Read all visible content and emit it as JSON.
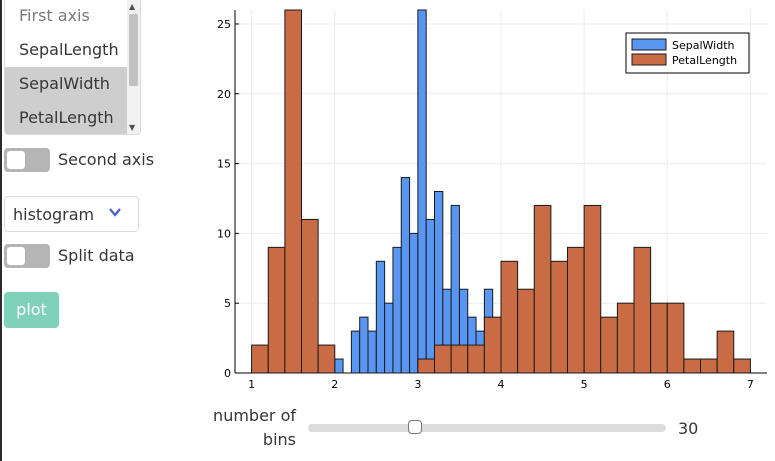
{
  "axis_list": {
    "placeholder": "First axis",
    "options": [
      "SepalLength",
      "SepalWidth",
      "PetalLength"
    ]
  },
  "second_axis_toggle": {
    "label": "Second axis",
    "on": false
  },
  "plot_type_select": {
    "value": "histogram"
  },
  "split_data_toggle": {
    "label": "Split data",
    "on": false
  },
  "plot_button": {
    "label": "plot"
  },
  "bins_slider": {
    "label_line1": "number of",
    "label_line2": "bins",
    "value": "30",
    "fraction": 0.3
  },
  "colors": {
    "sepalwidth": "#5996f2",
    "petallength": "#c96c45",
    "plot_button": "#7fd1b9"
  },
  "chart_data": {
    "type": "bar",
    "xlim": [
      0.8,
      7.2
    ],
    "ylim": [
      0,
      26
    ],
    "xticks": [
      1,
      2,
      3,
      4,
      5,
      6,
      7
    ],
    "yticks": [
      0,
      5,
      10,
      15,
      20,
      25
    ],
    "grid": true,
    "legend_position": "top-right",
    "series": [
      {
        "name": "SepalWidth",
        "color": "#5996f2",
        "bin_width": 0.1,
        "bins": [
          [
            2.0,
            1
          ],
          [
            2.2,
            3
          ],
          [
            2.3,
            4
          ],
          [
            2.4,
            3
          ],
          [
            2.5,
            8
          ],
          [
            2.6,
            5
          ],
          [
            2.7,
            9
          ],
          [
            2.8,
            14
          ],
          [
            2.9,
            10
          ],
          [
            3.0,
            26
          ],
          [
            3.1,
            11
          ],
          [
            3.2,
            13
          ],
          [
            3.3,
            6
          ],
          [
            3.4,
            12
          ],
          [
            3.5,
            6
          ],
          [
            3.6,
            4
          ],
          [
            3.7,
            3
          ],
          [
            3.8,
            6
          ],
          [
            3.9,
            2
          ],
          [
            4.0,
            1
          ],
          [
            4.1,
            1
          ],
          [
            4.2,
            1
          ],
          [
            4.4,
            1
          ]
        ]
      },
      {
        "name": "PetalLength",
        "color": "#c96c45",
        "bin_width": 0.2,
        "bins": [
          [
            1.0,
            2
          ],
          [
            1.2,
            9
          ],
          [
            1.4,
            26
          ],
          [
            1.6,
            11
          ],
          [
            1.8,
            2
          ],
          [
            3.0,
            1
          ],
          [
            3.2,
            2
          ],
          [
            3.4,
            2
          ],
          [
            3.6,
            2
          ],
          [
            3.8,
            4
          ],
          [
            4.0,
            8
          ],
          [
            4.2,
            6
          ],
          [
            4.4,
            12
          ],
          [
            4.6,
            8
          ],
          [
            4.8,
            9
          ],
          [
            5.0,
            12
          ],
          [
            5.2,
            4
          ],
          [
            5.4,
            5
          ],
          [
            5.6,
            9
          ],
          [
            5.8,
            5
          ],
          [
            6.0,
            5
          ],
          [
            6.2,
            1
          ],
          [
            6.4,
            1
          ],
          [
            6.6,
            3
          ],
          [
            6.8,
            1
          ]
        ]
      }
    ]
  }
}
